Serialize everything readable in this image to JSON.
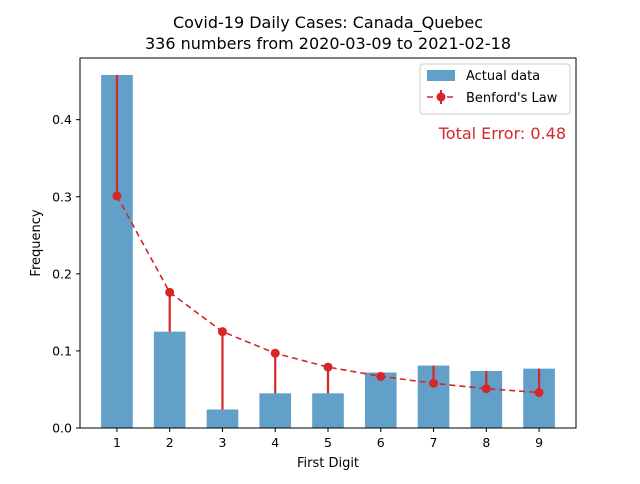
{
  "chart_data": {
    "type": "bar",
    "title_line1": "Covid-19 Daily Cases: Canada_Quebec",
    "title_line2": "336 numbers from 2020-03-09 to 2021-02-18",
    "xlabel": "First Digit",
    "ylabel": "Frequency",
    "categories": [
      "1",
      "2",
      "3",
      "4",
      "5",
      "6",
      "7",
      "8",
      "9"
    ],
    "ylim": [
      0,
      0.48
    ],
    "yticks": [
      0.0,
      0.1,
      0.2,
      0.3,
      0.4
    ],
    "ytick_labels": [
      "0.0",
      "0.1",
      "0.2",
      "0.3",
      "0.4"
    ],
    "series": [
      {
        "name": "Actual data",
        "kind": "bar",
        "color": "#1f77b4",
        "values": [
          0.458,
          0.125,
          0.024,
          0.045,
          0.045,
          0.072,
          0.081,
          0.074,
          0.077
        ]
      },
      {
        "name": "Benford's Law",
        "kind": "line-errorbar",
        "color": "#d62728",
        "values": [
          0.301,
          0.176,
          0.125,
          0.097,
          0.079,
          0.067,
          0.058,
          0.051,
          0.046
        ]
      }
    ],
    "annotation": "Total Error: 0.48",
    "annotation_color": "#d62728",
    "legend_position": "top-right",
    "grid": false
  }
}
